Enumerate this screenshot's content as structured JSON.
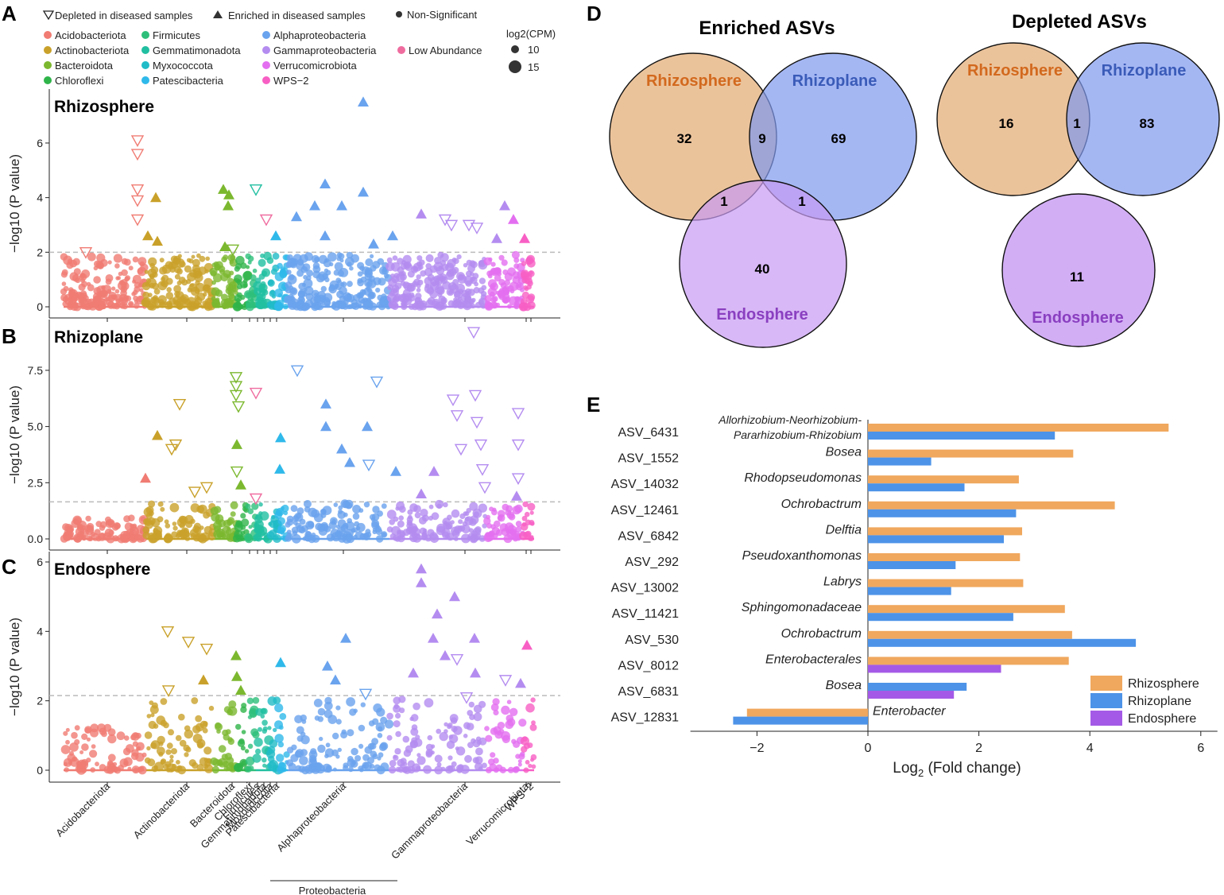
{
  "panel_labels": {
    "a": "A",
    "b": "B",
    "c": "C",
    "d": "D",
    "e": "E"
  },
  "legend": {
    "depleted": "Depleted in diseased samples",
    "enriched": "Enriched  in diseased samples",
    "nonsig": "Non-Significant",
    "size_title": "log2(CPM)",
    "size_values": [
      "10",
      "15"
    ],
    "taxa": [
      {
        "name": "Acidobacteriota",
        "color": "#f07c73"
      },
      {
        "name": "Actinobacteriota",
        "color": "#c9a12a"
      },
      {
        "name": "Bacteroidota",
        "color": "#7cb82f"
      },
      {
        "name": "Chloroflexi",
        "color": "#2fb44a"
      },
      {
        "name": "Firmicutes",
        "color": "#2ebf7a"
      },
      {
        "name": "Gemmatimonadota",
        "color": "#21bfa1"
      },
      {
        "name": "Myxococcota",
        "color": "#20bcc7"
      },
      {
        "name": "Patescibacteria",
        "color": "#2fb9ea"
      },
      {
        "name": "Alphaproteobacteria",
        "color": "#6aa3ee"
      },
      {
        "name": "Gammaproteobacteria",
        "color": "#b48cf0"
      },
      {
        "name": "Verrucomicrobiota",
        "color": "#e36ff0"
      },
      {
        "name": "WPS−2",
        "color": "#f85fc4"
      },
      {
        "name": "Low Abundance",
        "color": "#ef6c9f"
      }
    ]
  },
  "manhattan": {
    "ylabel": "−log10 (P value)",
    "phyla": [
      "Acidobacteriota",
      "Actinobacteriota",
      "Bacteroidota",
      "Chloroflexi",
      "Firmicutes",
      "Gemmatimonadota",
      "Moxococcota",
      "Patescibacteria",
      "Alphaproteobacteria",
      "Gammaproteobacteria",
      "Verrucomicrobiota",
      "WPS−2"
    ],
    "proteobacteria_label": "Proteobacteria",
    "panels": [
      {
        "title": "Rhizosphere",
        "yticks": [
          "0",
          "2",
          "4",
          "6"
        ],
        "ymax": 7.6,
        "threshold": 2.0
      },
      {
        "title": "Rhizoplane",
        "yticks": [
          "0.0",
          "2.5",
          "5.0",
          "7.5"
        ],
        "ymax": 9.3,
        "threshold": 1.65
      },
      {
        "title": "Endosphere",
        "yticks": [
          "0",
          "2",
          "4",
          "6"
        ],
        "ymax": 6.0,
        "threshold": 2.15
      }
    ]
  },
  "venn": {
    "enriched": {
      "title": "Enriched ASVs",
      "labels": [
        "Rhizosphere",
        "Rhizoplane",
        "Endosphere"
      ],
      "counts": {
        "rhizosphere_only": "32",
        "rhizosphere_rhizoplane": "9",
        "rhizoplane_only": "69",
        "rhizosphere_endosphere": "1",
        "rhizoplane_endosphere": "1",
        "endosphere_only": "40"
      }
    },
    "depleted": {
      "title": "Depleted ASVs",
      "labels": [
        "Rhizosphere",
        "Rhizoplane",
        "Endosphere"
      ],
      "counts": {
        "rhizosphere_only": "16",
        "rhizosphere_rhizoplane": "1",
        "rhizoplane_only": "83",
        "endosphere_only": "11"
      }
    },
    "colors": {
      "rhizosphere": "#e8b98a",
      "rhizoplane": "#7f98ee",
      "endosphere": "#c79af2",
      "rhizosphere_text": "#d2691e",
      "rhizoplane_text": "#3a5bb8",
      "endosphere_text": "#8a3fc0"
    }
  },
  "chart_data": {
    "type": "bar",
    "orientation": "horizontal",
    "xlabel": "Log",
    "xlabel_sub": "2",
    "xlabel_rest": " (Fold change)",
    "xticks": [
      "−2",
      "0",
      "2",
      "4",
      "6"
    ],
    "xtick_values": [
      -2,
      0,
      2,
      4,
      6
    ],
    "xlim": [
      -3.2,
      6.3
    ],
    "categories": [
      {
        "asv": "ASV_6431",
        "taxon": [
          "Allorhizobium-Neorhizobium-",
          "Pararhizobium-Rhizobium"
        ]
      },
      {
        "asv": "ASV_1552",
        "taxon": [
          "Bosea"
        ]
      },
      {
        "asv": "ASV_14032",
        "taxon": [
          "Rhodopseudomonas"
        ]
      },
      {
        "asv": "ASV_12461",
        "taxon": [
          "Ochrobactrum"
        ]
      },
      {
        "asv": "ASV_6842",
        "taxon": [
          "Delftia"
        ]
      },
      {
        "asv": "ASV_292",
        "taxon": [
          "Pseudoxanthomonas"
        ]
      },
      {
        "asv": "ASV_13002",
        "taxon": [
          "Labrys"
        ]
      },
      {
        "asv": "ASV_11421",
        "taxon": [
          "Sphingomonadaceae"
        ]
      },
      {
        "asv": "ASV_530",
        "taxon": [
          "Ochrobactrum"
        ]
      },
      {
        "asv": "ASV_8012",
        "taxon": [
          "Enterobacterales"
        ]
      },
      {
        "asv": "ASV_6831",
        "taxon": [
          "Bosea"
        ]
      },
      {
        "asv": "ASV_12831",
        "taxon": [
          "Enterobacter"
        ]
      }
    ],
    "series": [
      {
        "name": "Rhizosphere",
        "color": "#f0a85e",
        "values": [
          5.42,
          3.7,
          2.72,
          4.45,
          2.78,
          2.74,
          2.8,
          3.55,
          3.68,
          3.62,
          null,
          -2.18
        ]
      },
      {
        "name": "Rhizoplane",
        "color": "#4d93e8",
        "values": [
          3.37,
          1.14,
          1.74,
          2.67,
          2.45,
          1.58,
          1.5,
          2.62,
          4.83,
          null,
          1.78,
          -2.43
        ]
      },
      {
        "name": "Endosphere",
        "color": "#a45ae6",
        "values": [
          null,
          null,
          null,
          null,
          null,
          null,
          null,
          null,
          null,
          2.4,
          1.55,
          null
        ]
      }
    ]
  }
}
